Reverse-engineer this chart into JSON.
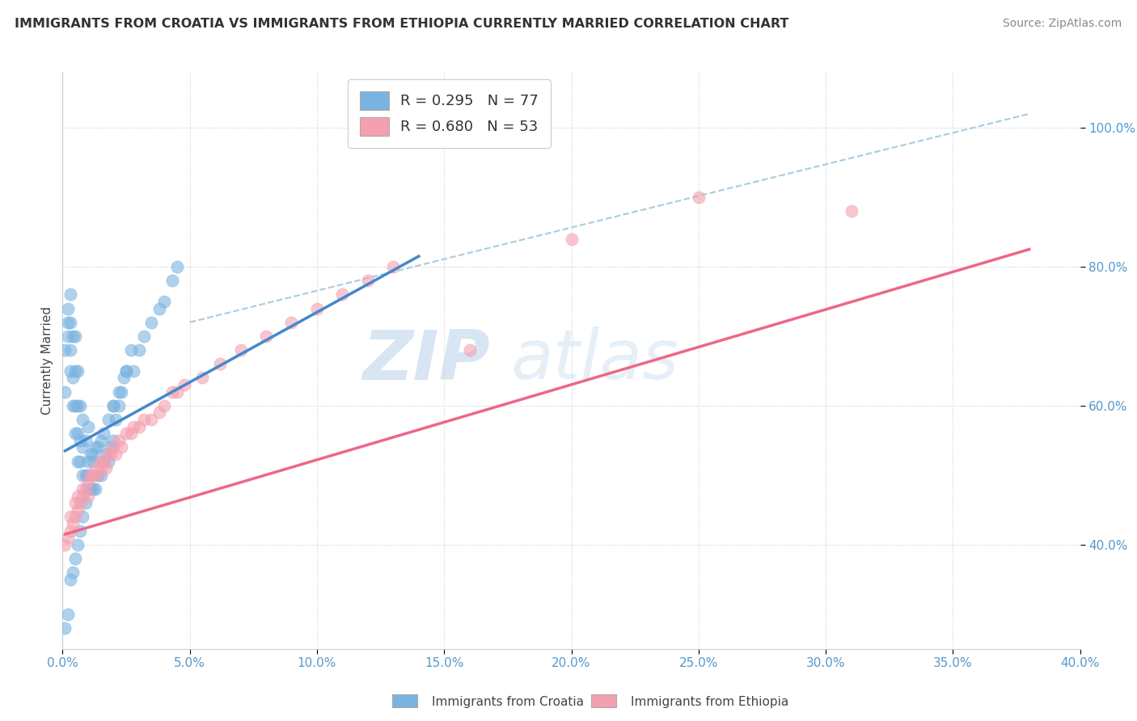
{
  "title": "IMMIGRANTS FROM CROATIA VS IMMIGRANTS FROM ETHIOPIA CURRENTLY MARRIED CORRELATION CHART",
  "source": "Source: ZipAtlas.com",
  "ylabel": "Currently Married",
  "yaxis_tick_vals": [
    0.4,
    0.6,
    0.8,
    1.0
  ],
  "xaxis_range": [
    0.0,
    0.4
  ],
  "yaxis_range": [
    0.25,
    1.08
  ],
  "legend_croatia": "R = 0.295   N = 77",
  "legend_ethiopia": "R = 0.680   N = 53",
  "legend_croatia_short": "Immigrants from Croatia",
  "legend_ethiopia_short": "Immigrants from Ethiopia",
  "color_croatia": "#7ab3e0",
  "color_ethiopia": "#f4a0b0",
  "color_line_croatia": "#4488cc",
  "color_line_ethiopia": "#ee6688",
  "color_line_diagonal": "#aaccdd",
  "watermark_zip": "ZIP",
  "watermark_atlas": "atlas",
  "background_color": "#ffffff",
  "croatia_scatter_x": [
    0.001,
    0.001,
    0.002,
    0.002,
    0.002,
    0.003,
    0.003,
    0.003,
    0.003,
    0.004,
    0.004,
    0.004,
    0.005,
    0.005,
    0.005,
    0.005,
    0.006,
    0.006,
    0.006,
    0.006,
    0.007,
    0.007,
    0.007,
    0.008,
    0.008,
    0.008,
    0.009,
    0.009,
    0.01,
    0.01,
    0.01,
    0.011,
    0.011,
    0.012,
    0.012,
    0.013,
    0.013,
    0.014,
    0.015,
    0.015,
    0.016,
    0.017,
    0.018,
    0.019,
    0.02,
    0.02,
    0.021,
    0.022,
    0.023,
    0.024,
    0.025,
    0.027,
    0.028,
    0.03,
    0.032,
    0.035,
    0.038,
    0.04,
    0.043,
    0.045,
    0.001,
    0.002,
    0.003,
    0.004,
    0.005,
    0.006,
    0.007,
    0.008,
    0.009,
    0.01,
    0.012,
    0.014,
    0.016,
    0.018,
    0.02,
    0.022,
    0.025
  ],
  "croatia_scatter_y": [
    0.62,
    0.68,
    0.7,
    0.72,
    0.74,
    0.65,
    0.68,
    0.72,
    0.76,
    0.6,
    0.64,
    0.7,
    0.56,
    0.6,
    0.65,
    0.7,
    0.52,
    0.56,
    0.6,
    0.65,
    0.52,
    0.55,
    0.6,
    0.5,
    0.54,
    0.58,
    0.5,
    0.55,
    0.48,
    0.52,
    0.57,
    0.48,
    0.53,
    0.48,
    0.53,
    0.48,
    0.54,
    0.5,
    0.5,
    0.55,
    0.52,
    0.53,
    0.52,
    0.54,
    0.55,
    0.6,
    0.58,
    0.6,
    0.62,
    0.64,
    0.65,
    0.68,
    0.65,
    0.68,
    0.7,
    0.72,
    0.74,
    0.75,
    0.78,
    0.8,
    0.28,
    0.3,
    0.35,
    0.36,
    0.38,
    0.4,
    0.42,
    0.44,
    0.46,
    0.5,
    0.52,
    0.54,
    0.56,
    0.58,
    0.6,
    0.62,
    0.65
  ],
  "ethiopia_scatter_x": [
    0.001,
    0.002,
    0.003,
    0.003,
    0.004,
    0.005,
    0.005,
    0.006,
    0.006,
    0.007,
    0.008,
    0.008,
    0.009,
    0.01,
    0.01,
    0.011,
    0.012,
    0.013,
    0.014,
    0.015,
    0.015,
    0.016,
    0.017,
    0.018,
    0.019,
    0.02,
    0.021,
    0.022,
    0.023,
    0.025,
    0.027,
    0.028,
    0.03,
    0.032,
    0.035,
    0.038,
    0.04,
    0.043,
    0.045,
    0.048,
    0.055,
    0.062,
    0.07,
    0.08,
    0.09,
    0.1,
    0.11,
    0.12,
    0.13,
    0.16,
    0.2,
    0.25,
    0.31
  ],
  "ethiopia_scatter_y": [
    0.4,
    0.41,
    0.42,
    0.44,
    0.43,
    0.44,
    0.46,
    0.45,
    0.47,
    0.46,
    0.47,
    0.48,
    0.48,
    0.47,
    0.49,
    0.5,
    0.5,
    0.51,
    0.5,
    0.51,
    0.52,
    0.52,
    0.51,
    0.53,
    0.53,
    0.54,
    0.53,
    0.55,
    0.54,
    0.56,
    0.56,
    0.57,
    0.57,
    0.58,
    0.58,
    0.59,
    0.6,
    0.62,
    0.62,
    0.63,
    0.64,
    0.66,
    0.68,
    0.7,
    0.72,
    0.74,
    0.76,
    0.78,
    0.8,
    0.68,
    0.84,
    0.9,
    0.88
  ],
  "croatia_line_x": [
    0.001,
    0.14
  ],
  "croatia_line_y": [
    0.535,
    0.815
  ],
  "ethiopia_line_x": [
    0.001,
    0.38
  ],
  "ethiopia_line_y": [
    0.415,
    0.825
  ],
  "diagonal_line_x": [
    0.05,
    0.38
  ],
  "diagonal_line_y": [
    0.72,
    1.02
  ],
  "xaxis_ticks": [
    0.0,
    0.05,
    0.1,
    0.15,
    0.2,
    0.25,
    0.3,
    0.35,
    0.4
  ],
  "grid_color": "#e8e8e8",
  "dotted_grid_color": "#cccccc"
}
